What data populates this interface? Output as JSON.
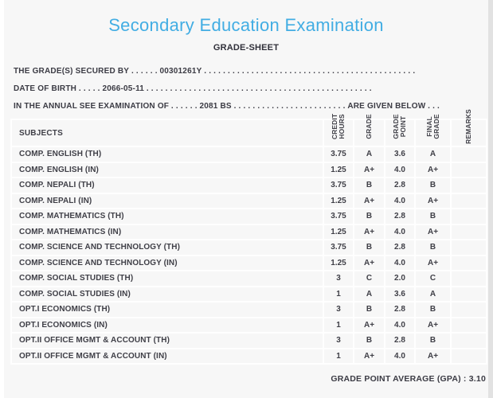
{
  "page": {
    "title": "Secondary Education Examination",
    "subtitle": "GRADE-SHEET"
  },
  "info_lines": [
    {
      "label": "THE GRADE(S) SECURED BY",
      "dots_before": ". . . . . .",
      "value": "00301261Y",
      "dots_after": ". . . . . . . . . . . . . . . . . . . . . . . . . . . . . . . . . . . . . . . . . . . . .",
      "trailing_label": "",
      "dots_end": ""
    },
    {
      "label": "DATE OF BIRTH",
      "dots_before": ". . . . .",
      "value": "2066-05-11",
      "dots_after": ". . . . . . . . . . . . . . . . . . . . . . . . . . . . . . . . . . . . . . . . . . . . . . . .",
      "trailing_label": "",
      "dots_end": ""
    },
    {
      "label": "IN THE ANNUAL SEE EXAMINATION OF",
      "dots_before": ". . . . . .",
      "value": "2081 BS",
      "dots_after": ". . . . . . . . . . . . . . . . . . . . . . . .",
      "trailing_label": "ARE GIVEN BELOW",
      "dots_end": ". . ."
    }
  ],
  "table": {
    "subjects_header": "SUBJECTS",
    "columns": [
      "CREDIT\nHOURS",
      "GRADE",
      "GRADE\nPOINT",
      "FINAL\nGRADE",
      "REMARKS"
    ],
    "rows": [
      {
        "subject": "COMP. ENGLISH (TH)",
        "credit_hours": "3.75",
        "grade": "A",
        "grade_point": "3.6",
        "final_grade": "A",
        "remarks": ""
      },
      {
        "subject": "COMP. ENGLISH (IN)",
        "credit_hours": "1.25",
        "grade": "A+",
        "grade_point": "4.0",
        "final_grade": "A+",
        "remarks": ""
      },
      {
        "subject": "COMP. NEPALI (TH)",
        "credit_hours": "3.75",
        "grade": "B",
        "grade_point": "2.8",
        "final_grade": "B",
        "remarks": ""
      },
      {
        "subject": "COMP. NEPALI (IN)",
        "credit_hours": "1.25",
        "grade": "A+",
        "grade_point": "4.0",
        "final_grade": "A+",
        "remarks": ""
      },
      {
        "subject": "COMP. MATHEMATICS (TH)",
        "credit_hours": "3.75",
        "grade": "B",
        "grade_point": "2.8",
        "final_grade": "B",
        "remarks": ""
      },
      {
        "subject": "COMP. MATHEMATICS (IN)",
        "credit_hours": "1.25",
        "grade": "A+",
        "grade_point": "4.0",
        "final_grade": "A+",
        "remarks": ""
      },
      {
        "subject": "COMP. SCIENCE AND TECHNOLOGY (TH)",
        "credit_hours": "3.75",
        "grade": "B",
        "grade_point": "2.8",
        "final_grade": "B",
        "remarks": ""
      },
      {
        "subject": "COMP. SCIENCE AND TECHNOLOGY (IN)",
        "credit_hours": "1.25",
        "grade": "A+",
        "grade_point": "4.0",
        "final_grade": "A+",
        "remarks": ""
      },
      {
        "subject": "COMP. SOCIAL STUDIES (TH)",
        "credit_hours": "3",
        "grade": "C",
        "grade_point": "2.0",
        "final_grade": "C",
        "remarks": ""
      },
      {
        "subject": "COMP. SOCIAL STUDIES (IN)",
        "credit_hours": "1",
        "grade": "A",
        "grade_point": "3.6",
        "final_grade": "A",
        "remarks": ""
      },
      {
        "subject": "OPT.I ECONOMICS (TH)",
        "credit_hours": "3",
        "grade": "B",
        "grade_point": "2.8",
        "final_grade": "B",
        "remarks": ""
      },
      {
        "subject": "OPT.I ECONOMICS (IN)",
        "credit_hours": "1",
        "grade": "A+",
        "grade_point": "4.0",
        "final_grade": "A+",
        "remarks": ""
      },
      {
        "subject": "OPT.II OFFICE MGMT & ACCOUNT (TH)",
        "credit_hours": "3",
        "grade": "B",
        "grade_point": "2.8",
        "final_grade": "B",
        "remarks": ""
      },
      {
        "subject": "OPT.II OFFICE MGMT & ACCOUNT (IN)",
        "credit_hours": "1",
        "grade": "A+",
        "grade_point": "4.0",
        "final_grade": "A+",
        "remarks": ""
      }
    ]
  },
  "footer": {
    "gpa_label": "GRADE POINT AVERAGE (GPA) :",
    "gpa_value": "3.10"
  },
  "colors": {
    "title_accent": "#42ade3",
    "body_text": "#3c3c43",
    "page_background": "#f7f7f7",
    "cell_border": "#ffffff"
  }
}
